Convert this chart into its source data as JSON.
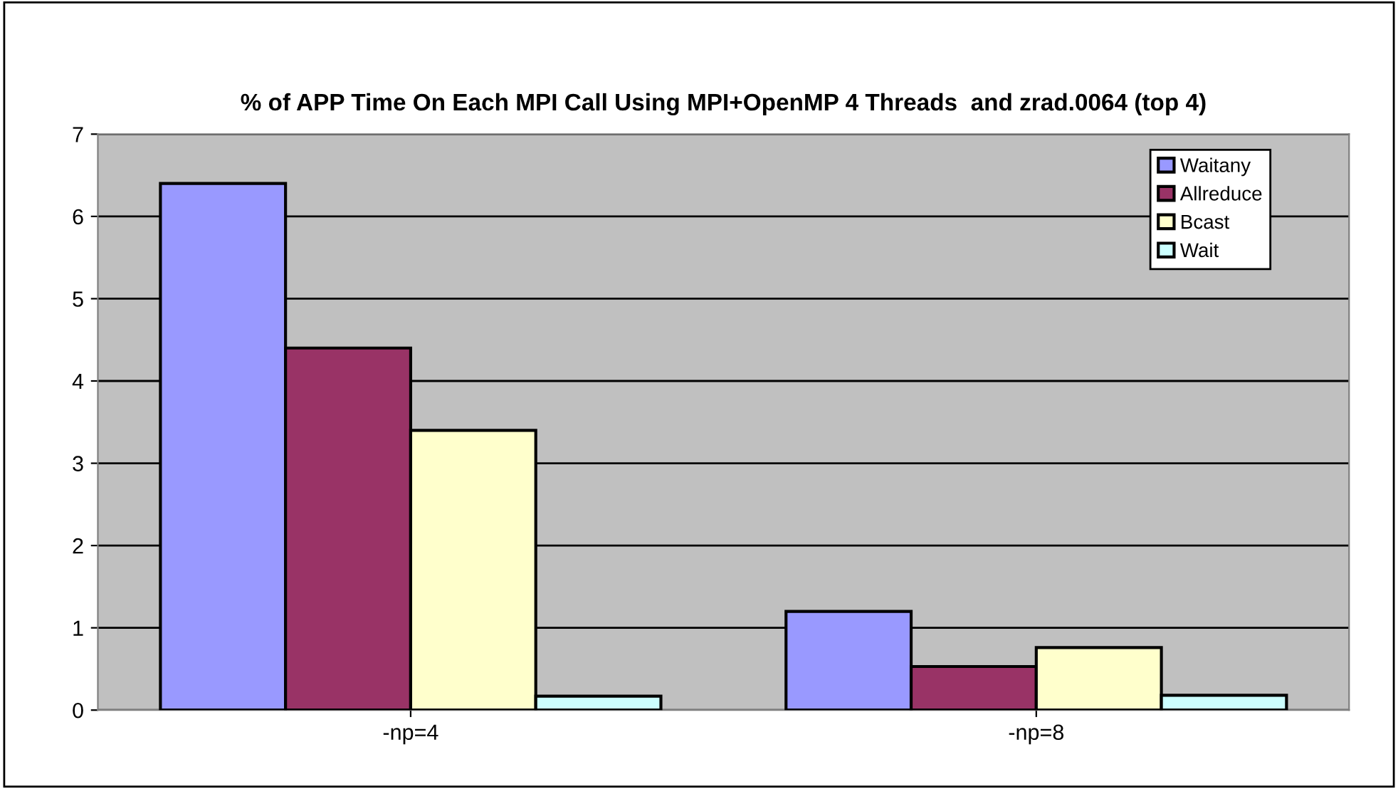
{
  "chart_data": {
    "type": "bar",
    "title": "% of APP Time On Each MPI Call Using MPI+OpenMP 4 Threads  and zrad.0064 (top 4)",
    "categories": [
      "-np=4",
      "-np=8"
    ],
    "series": [
      {
        "name": "Waitany",
        "color": "#9999ff",
        "values": [
          6.4,
          1.2
        ]
      },
      {
        "name": "Allreduce",
        "color": "#993366",
        "values": [
          4.4,
          0.53
        ]
      },
      {
        "name": "Bcast",
        "color": "#ffffcc",
        "values": [
          3.4,
          0.76
        ]
      },
      {
        "name": "Wait",
        "color": "#ccffff",
        "values": [
          0.17,
          0.18
        ]
      }
    ],
    "ylim": [
      0,
      7
    ],
    "yticks": [
      0,
      1,
      2,
      3,
      4,
      5,
      6,
      7
    ],
    "grid": "y",
    "legend": "top right"
  }
}
